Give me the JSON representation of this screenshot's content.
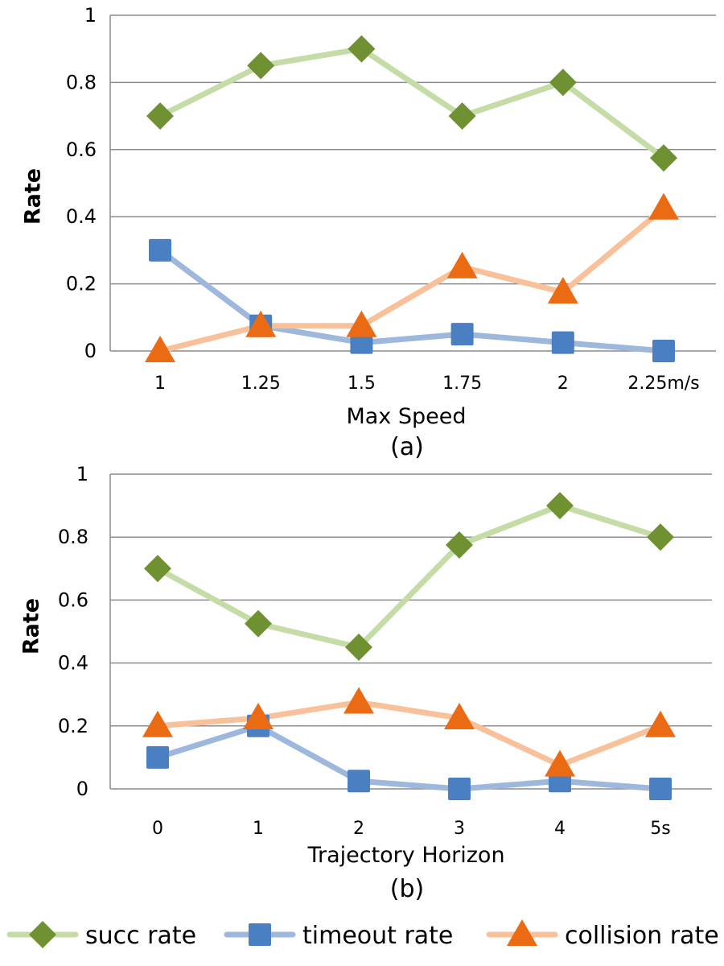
{
  "colors": {
    "succ_line": "#c5dca6",
    "succ_marker": "#6f9132",
    "timeout_line": "#9db8dc",
    "timeout_marker": "#4a7fc1",
    "collision_line": "#f8c19a",
    "collision_marker": "#ea6b14",
    "grid": "#8c8c8c"
  },
  "chart_data": [
    {
      "type": "line",
      "panel_label": "(a)",
      "xlabel": "Max Speed",
      "ylabel": "Rate",
      "categories": [
        "1",
        "1.25",
        "1.5",
        "1.75",
        "2",
        "2.25m/s"
      ],
      "ylim": [
        0,
        1
      ],
      "yticks": [
        "0",
        "0.2",
        "0.4",
        "0.6",
        "0.8",
        "1"
      ],
      "grid": true,
      "series": [
        {
          "name": "succ rate",
          "marker": "diamond",
          "values": [
            0.7,
            0.85,
            0.9,
            0.7,
            0.8,
            0.575
          ]
        },
        {
          "name": "timeout rate",
          "marker": "square",
          "values": [
            0.3,
            0.075,
            0.025,
            0.05,
            0.025,
            0.0
          ]
        },
        {
          "name": "collision rate",
          "marker": "triangle",
          "values": [
            0.0,
            0.075,
            0.075,
            0.25,
            0.175,
            0.425
          ]
        }
      ]
    },
    {
      "type": "line",
      "panel_label": "(b)",
      "xlabel": "Trajectory Horizon",
      "ylabel": "Rate",
      "categories": [
        "0",
        "1",
        "2",
        "3",
        "4",
        "5s"
      ],
      "ylim": [
        0,
        1
      ],
      "yticks": [
        "0",
        "0.2",
        "0.4",
        "0.6",
        "0.8",
        "1"
      ],
      "grid": true,
      "series": [
        {
          "name": "succ rate",
          "marker": "diamond",
          "values": [
            0.7,
            0.525,
            0.45,
            0.775,
            0.9,
            0.8
          ]
        },
        {
          "name": "timeout rate",
          "marker": "square",
          "values": [
            0.1,
            0.2,
            0.025,
            0.0,
            0.025,
            0.0
          ]
        },
        {
          "name": "collision rate",
          "marker": "triangle",
          "values": [
            0.2,
            0.225,
            0.275,
            0.225,
            0.075,
            0.2
          ]
        }
      ]
    }
  ],
  "legend": {
    "position": "bottom",
    "items": [
      {
        "label": "succ rate",
        "marker": "diamond"
      },
      {
        "label": "timeout rate",
        "marker": "square"
      },
      {
        "label": "collision rate",
        "marker": "triangle"
      }
    ]
  }
}
